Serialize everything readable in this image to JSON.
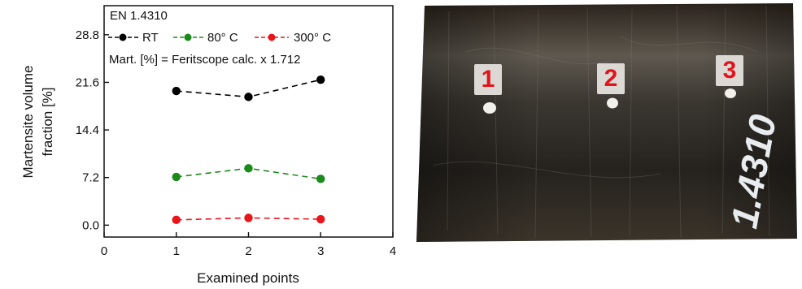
{
  "chart_data": {
    "type": "line",
    "title": "EN 1.4310",
    "annotation": "Mart. [%] = Feritscope calc. x 1.712",
    "xlabel": "Examined points",
    "ylabel_line1": "Martensite volume",
    "ylabel_line2": "fraction [%]",
    "xlim": [
      0,
      4
    ],
    "ylim": [
      -1.8,
      33.2
    ],
    "xticks": [
      "0",
      "1",
      "2",
      "3",
      "4"
    ],
    "yticks": [
      "0.0",
      "7.2",
      "14.4",
      "21.6",
      "28.8"
    ],
    "x": [
      1,
      2,
      3
    ],
    "series": [
      {
        "name": "RT",
        "color": "#000000",
        "values": [
          20.3,
          19.4,
          22.0
        ]
      },
      {
        "name": "80° C",
        "color": "#1a8a1a",
        "values": [
          7.3,
          8.6,
          7.0
        ]
      },
      {
        "name": "300° C",
        "color": "#e8151b",
        "values": [
          0.8,
          1.1,
          0.9
        ]
      }
    ],
    "grid": false,
    "legend_position": "top"
  },
  "photo": {
    "labels": [
      "1",
      "2",
      "3"
    ],
    "stamp_text": "1.4310"
  }
}
